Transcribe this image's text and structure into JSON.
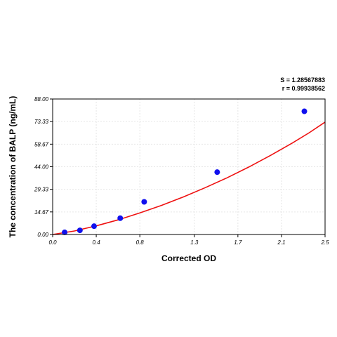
{
  "chart_data": {
    "type": "scatter",
    "xlabel": "Corrected OD",
    "ylabel": "The concentration of BALP (ng/mL)",
    "xlim": [
      0.0,
      2.5
    ],
    "ylim": [
      0.0,
      88.0
    ],
    "x_ticks": [
      "0.0",
      "0.4",
      "0.8",
      "1.3",
      "1.7",
      "2.1",
      "2.5"
    ],
    "x_tick_values": [
      0.0,
      0.4,
      0.8,
      1.3,
      1.7,
      2.1,
      2.5
    ],
    "y_ticks": [
      "0.00",
      "14.67",
      "29.33",
      "44.00",
      "58.67",
      "73.33",
      "88.00"
    ],
    "y_tick_values": [
      0.0,
      14.67,
      29.33,
      44.0,
      58.67,
      73.33,
      88.0
    ],
    "grid": true,
    "series": [
      {
        "points": [
          {
            "x": 0.11,
            "y": 1.4
          },
          {
            "x": 0.25,
            "y": 2.7
          },
          {
            "x": 0.38,
            "y": 5.4
          },
          {
            "x": 0.62,
            "y": 10.6
          },
          {
            "x": 0.84,
            "y": 21.2
          },
          {
            "x": 1.51,
            "y": 40.5
          },
          {
            "x": 2.31,
            "y": 80.0
          }
        ],
        "color": "#1010ee"
      }
    ],
    "fit_curve": {
      "color": "#ee1111",
      "points": [
        {
          "x": 0.0,
          "y": 0.0
        },
        {
          "x": 0.2,
          "y": 2.3
        },
        {
          "x": 0.4,
          "y": 5.6
        },
        {
          "x": 0.6,
          "y": 9.5
        },
        {
          "x": 0.8,
          "y": 14.0
        },
        {
          "x": 1.0,
          "y": 18.9
        },
        {
          "x": 1.2,
          "y": 24.4
        },
        {
          "x": 1.4,
          "y": 30.4
        },
        {
          "x": 1.6,
          "y": 36.8
        },
        {
          "x": 1.8,
          "y": 43.8
        },
        {
          "x": 2.0,
          "y": 51.4
        },
        {
          "x": 2.2,
          "y": 59.4
        },
        {
          "x": 2.35,
          "y": 65.9
        },
        {
          "x": 2.5,
          "y": 73.0
        }
      ]
    },
    "annotations": {
      "s_text": "S = 1.28567883",
      "r_text": "r = 0.99938562"
    }
  }
}
